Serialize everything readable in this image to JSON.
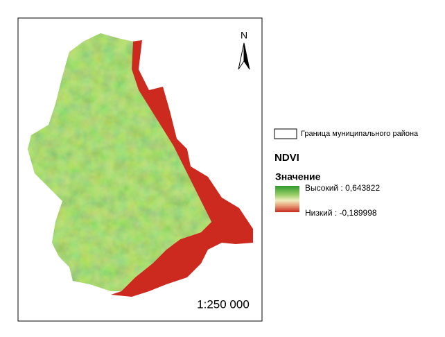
{
  "north_arrow": {
    "label": "N"
  },
  "scale": {
    "label": "1:250 000"
  },
  "legend": {
    "boundary": "Граница муниципального района",
    "layer": "NDVI",
    "field": "Значение",
    "high": "Высокий : 0,643822",
    "low": "Низкий : -0,189998"
  }
}
